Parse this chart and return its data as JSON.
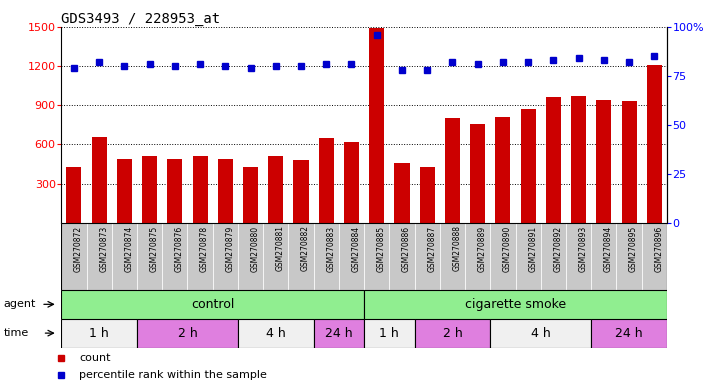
{
  "title": "GDS3493 / 228953_at",
  "samples": [
    "GSM270872",
    "GSM270873",
    "GSM270874",
    "GSM270875",
    "GSM270876",
    "GSM270878",
    "GSM270879",
    "GSM270880",
    "GSM270881",
    "GSM270882",
    "GSM270883",
    "GSM270884",
    "GSM270885",
    "GSM270886",
    "GSM270887",
    "GSM270888",
    "GSM270889",
    "GSM270890",
    "GSM270891",
    "GSM270892",
    "GSM270893",
    "GSM270894",
    "GSM270895",
    "GSM270896"
  ],
  "counts": [
    430,
    660,
    490,
    510,
    490,
    510,
    490,
    430,
    510,
    480,
    650,
    620,
    1490,
    460,
    430,
    800,
    755,
    810,
    870,
    960,
    970,
    940,
    930,
    1210
  ],
  "percentile_ranks": [
    79,
    82,
    80,
    81,
    80,
    81,
    80,
    79,
    80,
    80,
    81,
    81,
    96,
    78,
    78,
    82,
    81,
    82,
    82,
    83,
    84,
    83,
    82,
    85
  ],
  "bar_color": "#cc0000",
  "dot_color": "#0000cc",
  "left_yticks": [
    300,
    600,
    900,
    1200,
    1500
  ],
  "right_yticks": [
    0,
    25,
    50,
    75,
    100
  ],
  "left_ylim": [
    0,
    1500
  ],
  "right_ylim": [
    0,
    100
  ],
  "agent_groups": [
    {
      "label": "control",
      "start": 0,
      "end": 12,
      "color": "#90ee90"
    },
    {
      "label": "cigarette smoke",
      "start": 12,
      "end": 24,
      "color": "#90ee90"
    }
  ],
  "time_groups": [
    {
      "label": "1 h",
      "start": 0,
      "end": 3,
      "color": "#f0f0f0"
    },
    {
      "label": "2 h",
      "start": 3,
      "end": 7,
      "color": "#df7fdf"
    },
    {
      "label": "4 h",
      "start": 7,
      "end": 10,
      "color": "#f0f0f0"
    },
    {
      "label": "24 h",
      "start": 10,
      "end": 12,
      "color": "#df7fdf"
    },
    {
      "label": "1 h",
      "start": 12,
      "end": 14,
      "color": "#f0f0f0"
    },
    {
      "label": "2 h",
      "start": 14,
      "end": 17,
      "color": "#df7fdf"
    },
    {
      "label": "4 h",
      "start": 17,
      "end": 21,
      "color": "#f0f0f0"
    },
    {
      "label": "24 h",
      "start": 21,
      "end": 24,
      "color": "#df7fdf"
    }
  ],
  "legend_items": [
    {
      "label": "count",
      "color": "#cc0000"
    },
    {
      "label": "percentile rank within the sample",
      "color": "#0000cc"
    }
  ]
}
